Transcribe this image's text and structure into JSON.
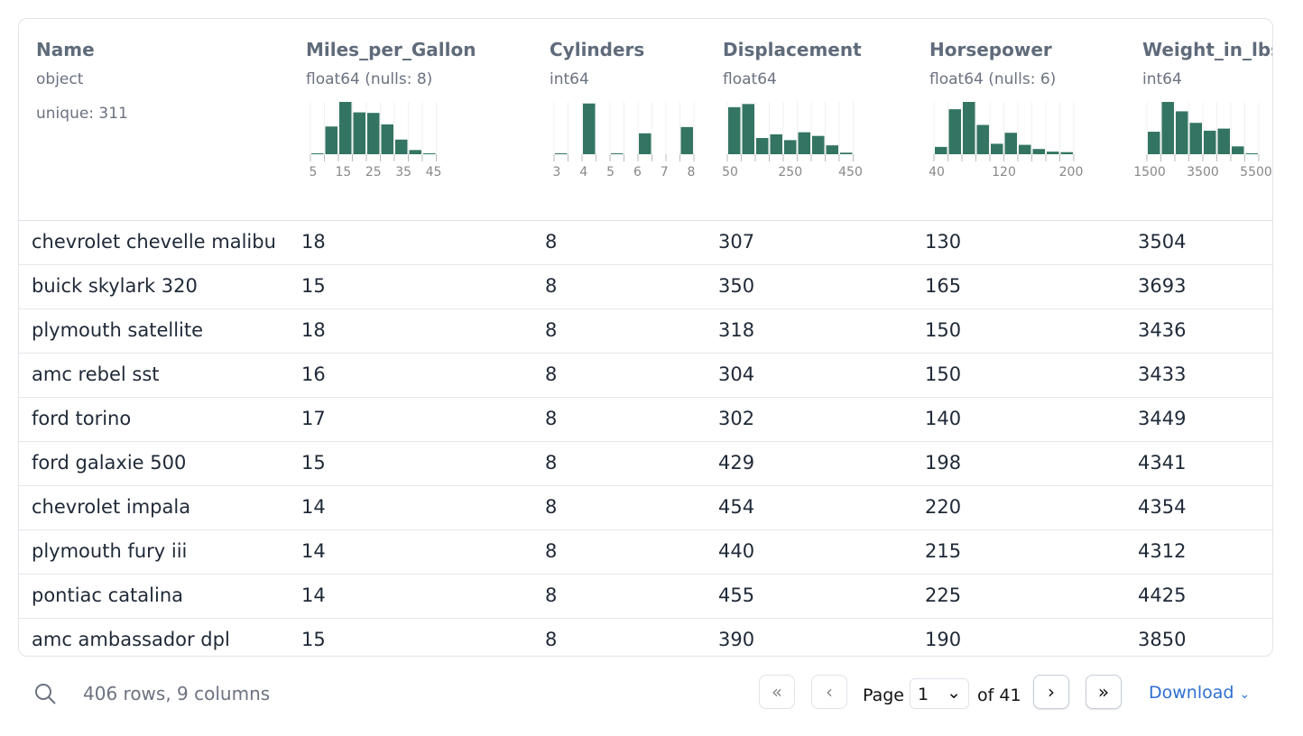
{
  "columns": [
    {
      "name": "Name",
      "type": "object",
      "unique": "unique: 311"
    },
    {
      "name": "Miles_per_Gallon",
      "type": "float64 (nulls: 8)",
      "hist": [
        0.01,
        0.53,
        1.0,
        0.8,
        0.79,
        0.57,
        0.28,
        0.08,
        0.01
      ],
      "ticks": [
        "5",
        "15",
        "25",
        "35",
        "45"
      ]
    },
    {
      "name": "Cylinders",
      "type": "int64",
      "hist": [
        0.01,
        0,
        0.97,
        0,
        0.01,
        0,
        0.4,
        0,
        0,
        0.52
      ],
      "ticks": [
        "3",
        "4",
        "5",
        "6",
        "7",
        "8"
      ]
    },
    {
      "name": "Displacement",
      "type": "float64",
      "hist": [
        0.9,
        0.96,
        0.31,
        0.38,
        0.27,
        0.42,
        0.35,
        0.17,
        0.03
      ],
      "ticks": [
        "50",
        "250",
        "450"
      ]
    },
    {
      "name": "Horsepower",
      "type": "float64 (nulls: 6)",
      "hist": [
        0.14,
        0.86,
        1.0,
        0.56,
        0.2,
        0.41,
        0.18,
        0.1,
        0.05,
        0.04
      ],
      "ticks": [
        "40",
        "120",
        "200"
      ]
    },
    {
      "name": "Weight_in_lbs",
      "type": "int64",
      "hist": [
        0.43,
        1.0,
        0.82,
        0.6,
        0.45,
        0.49,
        0.15,
        0.01
      ],
      "ticks": [
        "1500",
        "3500",
        "5500"
      ]
    }
  ],
  "rows": [
    [
      "chevrolet chevelle malibu",
      "18",
      "8",
      "307",
      "130",
      "3504"
    ],
    [
      "buick skylark 320",
      "15",
      "8",
      "350",
      "165",
      "3693"
    ],
    [
      "plymouth satellite",
      "18",
      "8",
      "318",
      "150",
      "3436"
    ],
    [
      "amc rebel sst",
      "16",
      "8",
      "304",
      "150",
      "3433"
    ],
    [
      "ford torino",
      "17",
      "8",
      "302",
      "140",
      "3449"
    ],
    [
      "ford galaxie 500",
      "15",
      "8",
      "429",
      "198",
      "4341"
    ],
    [
      "chevrolet impala",
      "14",
      "8",
      "454",
      "220",
      "4354"
    ],
    [
      "plymouth fury iii",
      "14",
      "8",
      "440",
      "215",
      "4312"
    ],
    [
      "pontiac catalina",
      "14",
      "8",
      "455",
      "225",
      "4425"
    ],
    [
      "amc ambassador dpl",
      "15",
      "8",
      "390",
      "190",
      "3850"
    ]
  ],
  "footer": {
    "summary": "406 rows, 9 columns",
    "page_label": "Page",
    "page_value": "1",
    "of_label": "of 41",
    "download": "Download"
  },
  "colors": {
    "bar": "#337562",
    "accent": "#2f6fd1"
  }
}
